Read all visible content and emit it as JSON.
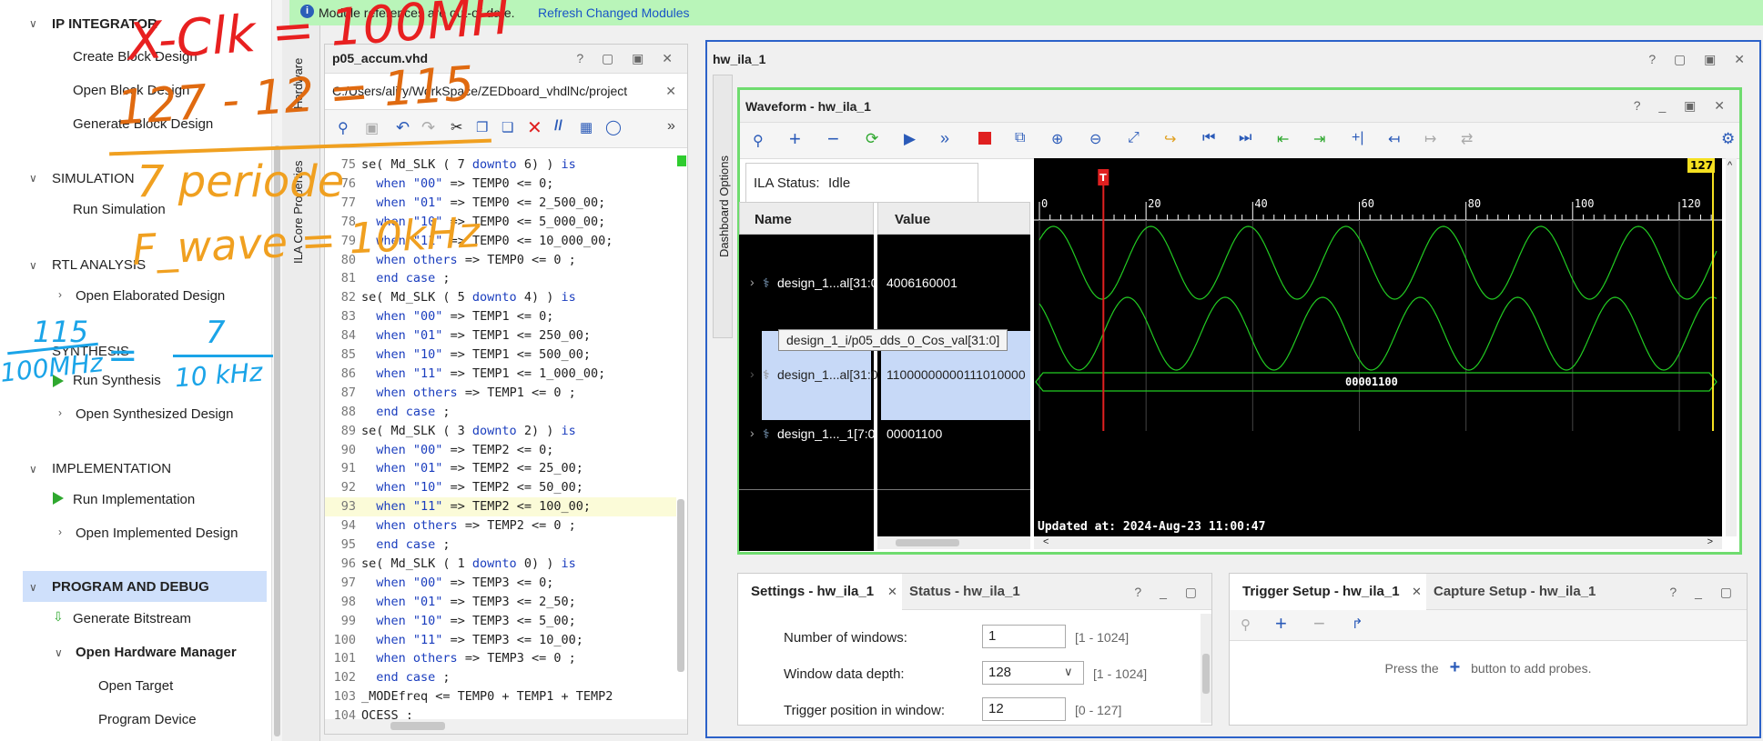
{
  "flow": {
    "sections": [
      {
        "title": "IP INTEGRATOR",
        "items": [
          "Create Block Design",
          "Open Block Design",
          "Generate Block Design"
        ]
      },
      {
        "title": "SIMULATION",
        "items": [
          "Run Simulation"
        ]
      },
      {
        "title": "RTL ANALYSIS",
        "items": [
          "Open Elaborated Design"
        ]
      },
      {
        "title": "SYNTHESIS",
        "items": [
          "Run Synthesis",
          "Open Synthesized Design"
        ]
      },
      {
        "title": "IMPLEMENTATION",
        "items": [
          "Run Implementation",
          "Open Implemented Design"
        ]
      },
      {
        "title": "PROGRAM AND DEBUG",
        "items": [
          "Generate Bitstream",
          "Open Hardware Manager",
          "Open Target",
          "Program Device"
        ]
      }
    ]
  },
  "vtabs": {
    "hardware": "Hardware",
    "ila_core": "ILA Core Properties",
    "dashboard": "Dashboard Options"
  },
  "notification": {
    "text": "Module references are out-of-date.",
    "link": "Refresh Changed Modules"
  },
  "editor": {
    "tab": "p05_accum.vhd",
    "path": "C:/Users/aliry/WorkSpace/ZEDboard_vhdlNc/project",
    "lines": [
      {
        "n": "75",
        "code": "se( Md_SLK ( 7 downto 6) ) is"
      },
      {
        "n": "76",
        "code": "  when \"00\" => TEMP0 <= 0;"
      },
      {
        "n": "77",
        "code": "  when \"01\" => TEMP0 <= 2_500_00;"
      },
      {
        "n": "78",
        "code": "  when \"10\" => TEMP0 <= 5_000_00;"
      },
      {
        "n": "79",
        "code": "  when \"11\" => TEMP0 <= 10_000_00;"
      },
      {
        "n": "80",
        "code": "  when others => TEMP0 <= 0 ;"
      },
      {
        "n": "81",
        "code": "  end case ;"
      },
      {
        "n": "82",
        "code": "se( Md_SLK ( 5 downto 4) ) is"
      },
      {
        "n": "83",
        "code": "  when \"00\" => TEMP1 <= 0;"
      },
      {
        "n": "84",
        "code": "  when \"01\" => TEMP1 <= 250_00;"
      },
      {
        "n": "85",
        "code": "  when \"10\" => TEMP1 <= 500_00;"
      },
      {
        "n": "86",
        "code": "  when \"11\" => TEMP1 <= 1_000_00;"
      },
      {
        "n": "87",
        "code": "  when others => TEMP1 <= 0 ;"
      },
      {
        "n": "88",
        "code": "  end case ;"
      },
      {
        "n": "89",
        "code": "se( Md_SLK ( 3 downto 2) ) is"
      },
      {
        "n": "90",
        "code": "  when \"00\" => TEMP2 <= 0;"
      },
      {
        "n": "91",
        "code": "  when \"01\" => TEMP2 <= 25_00;"
      },
      {
        "n": "92",
        "code": "  when \"10\" => TEMP2 <= 50_00;"
      },
      {
        "n": "93",
        "code": "  when \"11\" => TEMP2 <= 100_00;"
      },
      {
        "n": "94",
        "code": "  when others => TEMP2 <= 0 ;"
      },
      {
        "n": "95",
        "code": "  end case ;"
      },
      {
        "n": "96",
        "code": "se( Md_SLK ( 1 downto 0) ) is"
      },
      {
        "n": "97",
        "code": "  when \"00\" => TEMP3 <= 0;"
      },
      {
        "n": "98",
        "code": "  when \"01\" => TEMP3 <= 2_50;"
      },
      {
        "n": "99",
        "code": "  when \"10\" => TEMP3 <= 5_00;"
      },
      {
        "n": "100",
        "code": "  when \"11\" => TEMP3 <= 10_00;"
      },
      {
        "n": "101",
        "code": "  when others => TEMP3 <= 0 ;"
      },
      {
        "n": "102",
        "code": "  end case ;"
      },
      {
        "n": "103",
        "code": "_MODEfreq <= TEMP0 + TEMP1 + TEMP2"
      },
      {
        "n": "104",
        "code": "OCESS ;"
      }
    ]
  },
  "hwila": {
    "title": "hw_ila_1",
    "waveform_title": "Waveform - hw_ila_1",
    "status_label": "ILA Status:",
    "status_value": "Idle",
    "col_name": "Name",
    "col_value": "Value",
    "signals": [
      {
        "name": "design_1...al[31:0]",
        "value": "4006160001"
      },
      {
        "name": "design_1...al[31:0]",
        "value": "11000000000111010000"
      },
      {
        "name": "design_1..._1[7:0]",
        "value": "00001100"
      }
    ],
    "tooltip": "design_1_i/p05_dds_0_Cos_val[31:0]",
    "bus_label": "00001100",
    "ticks": [
      "0",
      "20",
      "40",
      "60",
      "80",
      "100",
      "120"
    ],
    "marker_t": "T",
    "cursor_label": "127",
    "updated": "Updated at: 2024-Aug-23 11:00:47"
  },
  "settings": {
    "tab1": "Settings - hw_ila_1",
    "tab2": "Status - hw_ila_1",
    "rows": [
      {
        "label": "Number of windows:",
        "value": "1",
        "range": "[1 - 1024]"
      },
      {
        "label": "Window data depth:",
        "value": "128",
        "range": "[1 - 1024]"
      },
      {
        "label": "Trigger position in window:",
        "value": "12",
        "range": "[0 - 127]"
      }
    ]
  },
  "trigger": {
    "tab1": "Trigger Setup - hw_ila_1",
    "tab2": "Capture Setup - hw_ila_1",
    "msg_pre": "Press the",
    "msg_post": "button to add probes."
  },
  "annotations": {
    "line1": "X-Clk = 100MH",
    "line2": "127 - 12 = 115",
    "line3": "7 periode",
    "line4": "F_wave = 10kHz",
    "frac1_num": "115",
    "frac1_den": "100MHz",
    "frac2_num": "7",
    "frac2_den": "10 kHz",
    "eq": "="
  }
}
